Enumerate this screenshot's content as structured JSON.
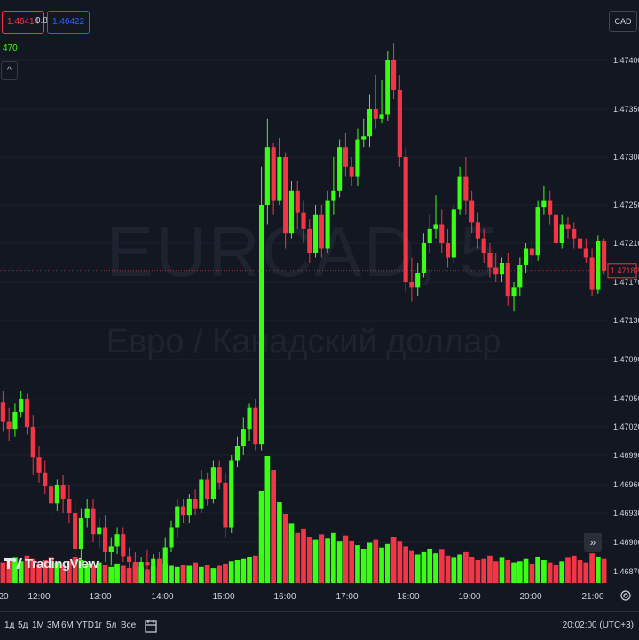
{
  "chart_data": {
    "type": "candlestick",
    "title": "EURCAD, 5",
    "subtitle": "Евро / Канадский доллар",
    "y_ticks": [
      1.474,
      1.4735,
      1.473,
      1.4725,
      1.4721,
      1.4717,
      1.4713,
      1.4709,
      1.4705,
      1.4702,
      1.4699,
      1.4696,
      1.4693,
      1.469,
      1.4687
    ],
    "y_tick_labels": [
      "1.47400",
      "1.47350",
      "1.47300",
      "1.47250",
      "1.47210",
      "1.47170",
      "1.47130",
      "1.47090",
      "1.47050",
      "1.47020",
      "1.46990",
      "1.46960",
      "1.46930",
      "1.46900",
      "1.46870"
    ],
    "x_tick_labels": [
      "20",
      "12:00",
      "13:00",
      "14:00",
      "15:00",
      "16:00",
      "17:00",
      "18:00",
      "19:00",
      "20:00",
      "21:00"
    ],
    "current_price": "1.47182",
    "colors": {
      "up": "#39ff14",
      "down": "#f23645",
      "last_price": "#f23645"
    },
    "candles": [
      {
        "o": 1.47046,
        "h": 1.47058,
        "l": 1.47015,
        "c": 1.47026
      },
      {
        "o": 1.47026,
        "h": 1.4704,
        "l": 1.47005,
        "c": 1.47018
      },
      {
        "o": 1.47018,
        "h": 1.47045,
        "l": 1.4701,
        "c": 1.47036
      },
      {
        "o": 1.47036,
        "h": 1.47058,
        "l": 1.4703,
        "c": 1.4705
      },
      {
        "o": 1.4705,
        "h": 1.47055,
        "l": 1.47012,
        "c": 1.4702
      },
      {
        "o": 1.4702,
        "h": 1.47032,
        "l": 1.4697,
        "c": 1.46988
      },
      {
        "o": 1.46988,
        "h": 1.47,
        "l": 1.46962,
        "c": 1.46972
      },
      {
        "o": 1.46972,
        "h": 1.46985,
        "l": 1.4695,
        "c": 1.46958
      },
      {
        "o": 1.46958,
        "h": 1.46966,
        "l": 1.4692,
        "c": 1.4694
      },
      {
        "o": 1.4694,
        "h": 1.46965,
        "l": 1.46932,
        "c": 1.4696
      },
      {
        "o": 1.4696,
        "h": 1.4697,
        "l": 1.4693,
        "c": 1.46945
      },
      {
        "o": 1.46945,
        "h": 1.4696,
        "l": 1.4692,
        "c": 1.4693
      },
      {
        "o": 1.4693,
        "h": 1.46942,
        "l": 1.4688,
        "c": 1.46893
      },
      {
        "o": 1.46893,
        "h": 1.46935,
        "l": 1.4688,
        "c": 1.46925
      },
      {
        "o": 1.46925,
        "h": 1.46945,
        "l": 1.46915,
        "c": 1.46935
      },
      {
        "o": 1.46935,
        "h": 1.46945,
        "l": 1.469,
        "c": 1.46908
      },
      {
        "o": 1.46908,
        "h": 1.46925,
        "l": 1.46895,
        "c": 1.46915
      },
      {
        "o": 1.46915,
        "h": 1.46928,
        "l": 1.4688,
        "c": 1.4689
      },
      {
        "o": 1.4689,
        "h": 1.46905,
        "l": 1.46876,
        "c": 1.46896
      },
      {
        "o": 1.46896,
        "h": 1.46915,
        "l": 1.46888,
        "c": 1.46908
      },
      {
        "o": 1.46908,
        "h": 1.46915,
        "l": 1.4688,
        "c": 1.46886
      },
      {
        "o": 1.46886,
        "h": 1.46895,
        "l": 1.4687,
        "c": 1.4688
      },
      {
        "o": 1.4688,
        "h": 1.4689,
        "l": 1.46862,
        "c": 1.4687
      },
      {
        "o": 1.4687,
        "h": 1.46885,
        "l": 1.46862,
        "c": 1.4688
      },
      {
        "o": 1.4688,
        "h": 1.46892,
        "l": 1.4687,
        "c": 1.46876
      },
      {
        "o": 1.46876,
        "h": 1.46888,
        "l": 1.46866,
        "c": 1.46883
      },
      {
        "o": 1.46883,
        "h": 1.4689,
        "l": 1.46865,
        "c": 1.46872
      },
      {
        "o": 1.46872,
        "h": 1.46905,
        "l": 1.46868,
        "c": 1.46895
      },
      {
        "o": 1.46895,
        "h": 1.46922,
        "l": 1.4689,
        "c": 1.46915
      },
      {
        "o": 1.46915,
        "h": 1.46945,
        "l": 1.46905,
        "c": 1.46937
      },
      {
        "o": 1.46937,
        "h": 1.46945,
        "l": 1.4692,
        "c": 1.46928
      },
      {
        "o": 1.46928,
        "h": 1.4695,
        "l": 1.4692,
        "c": 1.46945
      },
      {
        "o": 1.46945,
        "h": 1.46955,
        "l": 1.46928,
        "c": 1.46935
      },
      {
        "o": 1.46935,
        "h": 1.46975,
        "l": 1.4693,
        "c": 1.46965
      },
      {
        "o": 1.46965,
        "h": 1.46972,
        "l": 1.46938,
        "c": 1.46945
      },
      {
        "o": 1.46945,
        "h": 1.46985,
        "l": 1.4694,
        "c": 1.46978
      },
      {
        "o": 1.46978,
        "h": 1.46985,
        "l": 1.46955,
        "c": 1.46962
      },
      {
        "o": 1.46962,
        "h": 1.46972,
        "l": 1.46905,
        "c": 1.46915
      },
      {
        "o": 1.46915,
        "h": 1.4699,
        "l": 1.4691,
        "c": 1.46985
      },
      {
        "o": 1.46985,
        "h": 1.4701,
        "l": 1.46978,
        "c": 1.47
      },
      {
        "o": 1.47,
        "h": 1.4703,
        "l": 1.4699,
        "c": 1.47018
      },
      {
        "o": 1.47018,
        "h": 1.47045,
        "l": 1.47005,
        "c": 1.4704
      },
      {
        "o": 1.4704,
        "h": 1.4705,
        "l": 1.46995,
        "c": 1.47002
      },
      {
        "o": 1.47002,
        "h": 1.4729,
        "l": 1.46995,
        "c": 1.4725
      },
      {
        "o": 1.4725,
        "h": 1.4734,
        "l": 1.4723,
        "c": 1.4731
      },
      {
        "o": 1.4731,
        "h": 1.47315,
        "l": 1.4724,
        "c": 1.47255
      },
      {
        "o": 1.47255,
        "h": 1.4732,
        "l": 1.4725,
        "c": 1.473
      },
      {
        "o": 1.473,
        "h": 1.47305,
        "l": 1.47205,
        "c": 1.4722
      },
      {
        "o": 1.4722,
        "h": 1.47275,
        "l": 1.47215,
        "c": 1.47265
      },
      {
        "o": 1.47265,
        "h": 1.47275,
        "l": 1.47225,
        "c": 1.47242
      },
      {
        "o": 1.47242,
        "h": 1.47255,
        "l": 1.4721,
        "c": 1.47225
      },
      {
        "o": 1.47225,
        "h": 1.47235,
        "l": 1.4719,
        "c": 1.472
      },
      {
        "o": 1.472,
        "h": 1.4725,
        "l": 1.47195,
        "c": 1.4724
      },
      {
        "o": 1.4724,
        "h": 1.4725,
        "l": 1.47195,
        "c": 1.47205
      },
      {
        "o": 1.47205,
        "h": 1.47265,
        "l": 1.472,
        "c": 1.47255
      },
      {
        "o": 1.47255,
        "h": 1.473,
        "l": 1.4724,
        "c": 1.47265
      },
      {
        "o": 1.47265,
        "h": 1.47318,
        "l": 1.47258,
        "c": 1.4731
      },
      {
        "o": 1.4731,
        "h": 1.47325,
        "l": 1.4728,
        "c": 1.4729
      },
      {
        "o": 1.4729,
        "h": 1.473,
        "l": 1.4727,
        "c": 1.4728
      },
      {
        "o": 1.4728,
        "h": 1.4733,
        "l": 1.4727,
        "c": 1.47318
      },
      {
        "o": 1.47318,
        "h": 1.4734,
        "l": 1.4731,
        "c": 1.47322
      },
      {
        "o": 1.47322,
        "h": 1.47365,
        "l": 1.4731,
        "c": 1.4735
      },
      {
        "o": 1.4735,
        "h": 1.47385,
        "l": 1.4733,
        "c": 1.4734
      },
      {
        "o": 1.4734,
        "h": 1.4738,
        "l": 1.47335,
        "c": 1.47345
      },
      {
        "o": 1.47345,
        "h": 1.4741,
        "l": 1.47338,
        "c": 1.474
      },
      {
        "o": 1.474,
        "h": 1.47418,
        "l": 1.4736,
        "c": 1.4737
      },
      {
        "o": 1.4737,
        "h": 1.47385,
        "l": 1.4729,
        "c": 1.473
      },
      {
        "o": 1.473,
        "h": 1.4731,
        "l": 1.4716,
        "c": 1.4717
      },
      {
        "o": 1.4717,
        "h": 1.47195,
        "l": 1.4715,
        "c": 1.47165
      },
      {
        "o": 1.47165,
        "h": 1.4719,
        "l": 1.47155,
        "c": 1.4718
      },
      {
        "o": 1.4718,
        "h": 1.4722,
        "l": 1.47175,
        "c": 1.4721
      },
      {
        "o": 1.4721,
        "h": 1.4724,
        "l": 1.472,
        "c": 1.47225
      },
      {
        "o": 1.47225,
        "h": 1.4726,
        "l": 1.47215,
        "c": 1.4723
      },
      {
        "o": 1.4723,
        "h": 1.47245,
        "l": 1.472,
        "c": 1.4721
      },
      {
        "o": 1.4721,
        "h": 1.47225,
        "l": 1.47185,
        "c": 1.47195
      },
      {
        "o": 1.47195,
        "h": 1.4725,
        "l": 1.4719,
        "c": 1.47245
      },
      {
        "o": 1.47245,
        "h": 1.4729,
        "l": 1.4724,
        "c": 1.4728
      },
      {
        "o": 1.4728,
        "h": 1.473,
        "l": 1.4724,
        "c": 1.47255
      },
      {
        "o": 1.47255,
        "h": 1.47265,
        "l": 1.4722,
        "c": 1.47232
      },
      {
        "o": 1.47232,
        "h": 1.47242,
        "l": 1.47205,
        "c": 1.47215
      },
      {
        "o": 1.47215,
        "h": 1.47225,
        "l": 1.4719,
        "c": 1.472
      },
      {
        "o": 1.472,
        "h": 1.4721,
        "l": 1.47175,
        "c": 1.47185
      },
      {
        "o": 1.47185,
        "h": 1.472,
        "l": 1.4717,
        "c": 1.47178
      },
      {
        "o": 1.47178,
        "h": 1.47195,
        "l": 1.4717,
        "c": 1.4719
      },
      {
        "o": 1.4719,
        "h": 1.472,
        "l": 1.47145,
        "c": 1.47155
      },
      {
        "o": 1.47155,
        "h": 1.4717,
        "l": 1.4714,
        "c": 1.47165
      },
      {
        "o": 1.47165,
        "h": 1.47195,
        "l": 1.47155,
        "c": 1.47188
      },
      {
        "o": 1.47188,
        "h": 1.4721,
        "l": 1.4718,
        "c": 1.47205
      },
      {
        "o": 1.47205,
        "h": 1.47215,
        "l": 1.4719,
        "c": 1.47198
      },
      {
        "o": 1.47198,
        "h": 1.47255,
        "l": 1.47192,
        "c": 1.47248
      },
      {
        "o": 1.47248,
        "h": 1.4727,
        "l": 1.4724,
        "c": 1.47255
      },
      {
        "o": 1.47255,
        "h": 1.47265,
        "l": 1.4723,
        "c": 1.4724
      },
      {
        "o": 1.4724,
        "h": 1.47248,
        "l": 1.472,
        "c": 1.4721
      },
      {
        "o": 1.4721,
        "h": 1.4724,
        "l": 1.47205,
        "c": 1.4723
      },
      {
        "o": 1.4723,
        "h": 1.47238,
        "l": 1.47215,
        "c": 1.47225
      },
      {
        "o": 1.47225,
        "h": 1.47232,
        "l": 1.47205,
        "c": 1.47215
      },
      {
        "o": 1.47215,
        "h": 1.47225,
        "l": 1.47198,
        "c": 1.47205
      },
      {
        "o": 1.47205,
        "h": 1.47215,
        "l": 1.4719,
        "c": 1.47195
      },
      {
        "o": 1.47195,
        "h": 1.47205,
        "l": 1.47155,
        "c": 1.47162
      },
      {
        "o": 1.47162,
        "h": 1.47218,
        "l": 1.47158,
        "c": 1.47212
      },
      {
        "o": 1.47212,
        "h": 1.47215,
        "l": 1.47178,
        "c": 1.47182
      }
    ],
    "volumes": [
      18,
      20,
      22,
      19,
      24,
      21,
      17,
      20,
      22,
      18,
      16,
      19,
      23,
      20,
      17,
      15,
      18,
      16,
      14,
      17,
      15,
      13,
      16,
      14,
      12,
      15,
      13,
      17,
      15,
      14,
      16,
      15,
      18,
      14,
      16,
      13,
      15,
      17,
      19,
      20,
      21,
      23,
      24,
      80,
      110,
      98,
      70,
      60,
      52,
      44,
      47,
      40,
      38,
      42,
      39,
      44,
      36,
      41,
      37,
      33,
      30,
      35,
      38,
      31,
      34,
      40,
      36,
      32,
      28,
      25,
      27,
      30,
      26,
      29,
      24,
      22,
      25,
      27,
      23,
      20,
      21,
      24,
      19,
      22,
      20,
      18,
      19,
      21,
      17,
      23,
      20,
      18,
      16,
      19,
      22,
      24,
      20,
      18,
      26,
      23,
      21
    ],
    "volume_colors_follow_candles": true
  },
  "header": {
    "bid": "1.46414",
    "spread": "0.8",
    "ask": "1.46422",
    "volume_value": "470",
    "collapse_symbol": "^",
    "currency": "CAD"
  },
  "logo": {
    "text": "TradingView"
  },
  "scroll_button": "»",
  "bottom": {
    "timeframes": [
      "1д",
      "5д",
      "1М",
      "3М",
      "6М",
      "YTD",
      "1г",
      "5л",
      "Все"
    ],
    "clock": "20:02:00 (UTC+3)"
  },
  "icons": {
    "settings": "gear-icon",
    "calendar": "calendar-icon",
    "logo": "tradingview-logo-icon"
  }
}
